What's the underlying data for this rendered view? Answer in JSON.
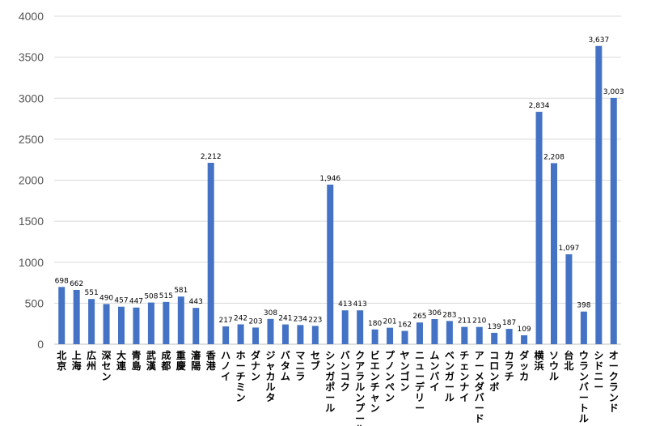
{
  "colors": {
    "bar": "#4472C4",
    "grid": "#d9d9d9",
    "axis": "#bfbfbf"
  },
  "chart_data": {
    "type": "bar",
    "title": "",
    "xlabel": "",
    "ylabel": "",
    "ylim": [
      0,
      4000
    ],
    "yticks": [
      "0",
      "500",
      "1000",
      "1500",
      "2000",
      "2500",
      "3000",
      "3500",
      "4000"
    ],
    "grid": true,
    "legend": "none",
    "categories": [
      "北京",
      "上海",
      "広州",
      "深セン",
      "大連",
      "青島",
      "武漢",
      "成都",
      "重慶",
      "瀋陽",
      "香港",
      "ハノイ",
      "ホーチミン",
      "ダナン",
      "ジャカルタ",
      "バタム",
      "マニラ",
      "セブ",
      "シンガポール",
      "バンコク",
      "クアラルンプール",
      "ビエンチャン",
      "プノンペン",
      "ヤンゴン",
      "ニューデリー",
      "ムンバイ",
      "ベンガール",
      "チェンナイ",
      "アーメダバード",
      "コロンボ",
      "カラチ",
      "ダッカ",
      "横浜",
      "ソウル",
      "台北",
      "ウランバートル",
      "シドニー",
      "オークランド"
    ],
    "values": [
      698,
      662,
      551,
      490,
      457,
      447,
      508,
      515,
      581,
      443,
      2212,
      217,
      242,
      203,
      308,
      241,
      234,
      223,
      1946,
      413,
      413,
      180,
      201,
      162,
      265,
      306,
      283,
      211,
      210,
      139,
      187,
      109,
      2834,
      2208,
      1097,
      398,
      3637,
      3003
    ],
    "value_labels": [
      "698",
      "662",
      "551",
      "490",
      "457",
      "447",
      "508",
      "515",
      "581",
      "443",
      "2,212",
      "217",
      "242",
      "203",
      "308",
      "241",
      "234",
      "223",
      "1,946",
      "413",
      "413",
      "180",
      "201",
      "162",
      "265",
      "306",
      "283",
      "211",
      "210",
      "139",
      "187",
      "109",
      "2,834",
      "2,208",
      "1,097",
      "398",
      "3,637",
      "3,003"
    ]
  }
}
